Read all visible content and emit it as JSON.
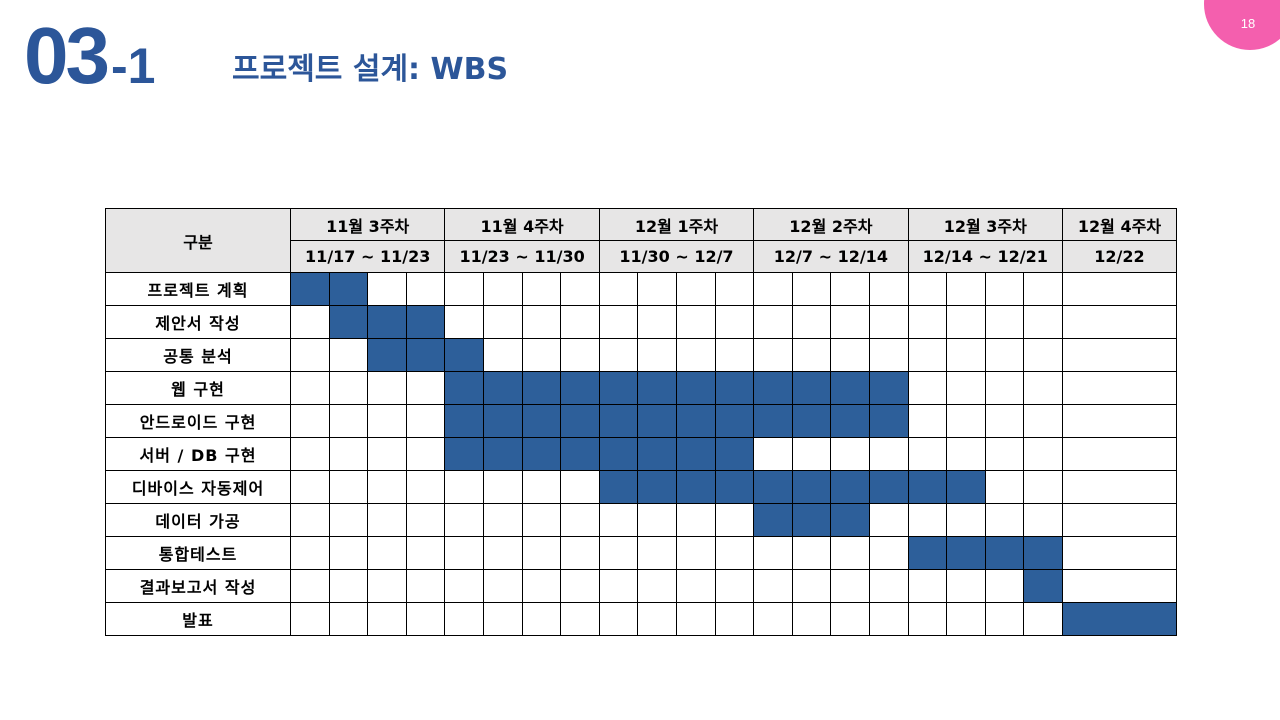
{
  "slide": {
    "section_major": "03",
    "section_dash": "-",
    "section_minor": "1",
    "title": "프로젝트 설계: WBS",
    "page_number": "18",
    "accent_color": "#2c5699",
    "corner_color": "#f45fae",
    "filled_color": "#2d5f9a",
    "header_bg": "#e7e6e6"
  },
  "wbs": {
    "category_header": "구분",
    "weeks": [
      {
        "label": "11월  3주차",
        "range": "11/17  ~  11/23",
        "slots": 4
      },
      {
        "label": "11월  4주차",
        "range": "11/23  ~  11/30",
        "slots": 4
      },
      {
        "label": "12월  1주차",
        "range": "11/30  ~  12/7",
        "slots": 4
      },
      {
        "label": "12월  2주차",
        "range": "12/7  ~  12/14",
        "slots": 4
      },
      {
        "label": "12월  3주차",
        "range": "12/14  ~  12/21",
        "slots": 4
      },
      {
        "label": "12월  4주차",
        "range": "12/22",
        "slots": 1
      }
    ],
    "tasks": [
      {
        "name": "프로젝트 계획",
        "active": [
          0,
          1
        ]
      },
      {
        "name": "제안서 작성",
        "active": [
          1,
          2,
          3
        ]
      },
      {
        "name": "공통 분석",
        "active": [
          2,
          3,
          4
        ]
      },
      {
        "name": "웹 구현",
        "active": [
          4,
          5,
          6,
          7,
          8,
          9,
          10,
          11,
          12,
          13,
          14,
          15
        ]
      },
      {
        "name": "안드로이드 구현",
        "active": [
          4,
          5,
          6,
          7,
          8,
          9,
          10,
          11,
          12,
          13,
          14,
          15
        ]
      },
      {
        "name": "서버 / DB 구현",
        "active": [
          4,
          5,
          6,
          7,
          8,
          9,
          10,
          11
        ]
      },
      {
        "name": "디바이스 자동제어",
        "active": [
          8,
          9,
          10,
          11,
          12,
          13,
          14,
          15,
          16,
          17
        ]
      },
      {
        "name": "데이터 가공",
        "active": [
          12,
          13,
          14
        ]
      },
      {
        "name": "통합테스트",
        "active": [
          16,
          17,
          18,
          19
        ]
      },
      {
        "name": "결과보고서 작성",
        "active": [
          19
        ]
      },
      {
        "name": "발표",
        "active": [
          20
        ]
      }
    ]
  }
}
